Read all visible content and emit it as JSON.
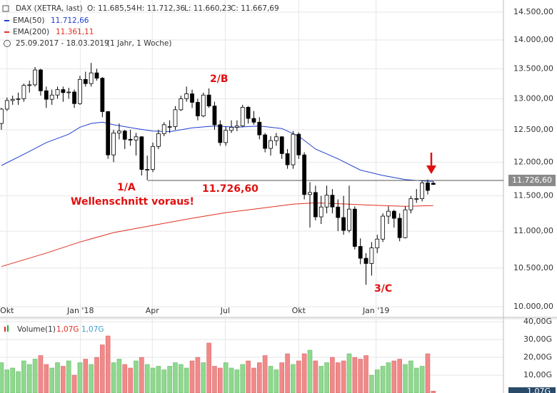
{
  "chart_data": {
    "type": "candlestick",
    "title": "DAX (XETRA, last)",
    "last_labels": [
      "O: 11.685,54",
      "H: 11.712,36",
      "L: 11.660,23",
      "C: 11.667,69"
    ],
    "period": "25.09.2017 - 18.03.2019",
    "period_note": "(1 Jahr, 1 Woche)",
    "ylog": true,
    "ylim": [
      9875,
      14723
    ],
    "yticks": [
      {
        "value": 10000,
        "label": "10.000,00"
      },
      {
        "value": 10500,
        "label": "10.500,00"
      },
      {
        "value": 11000,
        "label": "11.000,00"
      },
      {
        "value": 11500,
        "label": "11.500,00"
      },
      {
        "value": 12000,
        "label": "12.000,00"
      },
      {
        "value": 12500,
        "label": "12.500,00"
      },
      {
        "value": 13000,
        "label": "13.000,00"
      },
      {
        "value": 13500,
        "label": "13.500,00"
      },
      {
        "value": 14000,
        "label": "14.000,00"
      },
      {
        "value": 14500,
        "label": "14.500,00"
      }
    ],
    "xlim": [
      -0.25,
      89.5
    ],
    "xticks": [
      {
        "value": 1,
        "label": "Okt"
      },
      {
        "value": 14.1,
        "label": "Jan '18"
      },
      {
        "value": 26.9,
        "label": "Apr"
      },
      {
        "value": 39.9,
        "label": "Jul"
      },
      {
        "value": 53,
        "label": "Okt"
      },
      {
        "value": 66.8,
        "label": "Jan '19"
      }
    ],
    "grid": true,
    "up_color": "#ffffff",
    "down_color": "#000000",
    "ohlc": [
      [
        12600,
        12850,
        12500,
        12830
      ],
      [
        12830,
        13020,
        12800,
        12970
      ],
      [
        12970,
        13050,
        12900,
        12990
      ],
      [
        12990,
        13100,
        12900,
        13000
      ],
      [
        13000,
        13250,
        12950,
        13220
      ],
      [
        13220,
        13300,
        13100,
        13230
      ],
      [
        13230,
        13530,
        13200,
        13480
      ],
      [
        13480,
        13500,
        13050,
        13130
      ],
      [
        13130,
        13200,
        12850,
        12990
      ],
      [
        12990,
        13150,
        12900,
        13060
      ],
      [
        13060,
        13200,
        13000,
        13150
      ],
      [
        13150,
        13200,
        12950,
        13100
      ],
      [
        13100,
        13180,
        13000,
        13110
      ],
      [
        13110,
        13150,
        12850,
        12920
      ],
      [
        12920,
        13380,
        12900,
        13320
      ],
      [
        13320,
        13450,
        13200,
        13250
      ],
      [
        13250,
        13600,
        13200,
        13430
      ],
      [
        13430,
        13500,
        13300,
        13340
      ],
      [
        13340,
        13360,
        12700,
        12790
      ],
      [
        12790,
        12800,
        12050,
        12110
      ],
      [
        12110,
        12500,
        12000,
        12450
      ],
      [
        12450,
        12600,
        12350,
        12480
      ],
      [
        12480,
        12500,
        12200,
        12350
      ],
      [
        12350,
        12500,
        12250,
        12340
      ],
      [
        12340,
        12450,
        12100,
        12390
      ],
      [
        12390,
        12400,
        11800,
        11890
      ],
      [
        11890,
        12100,
        11730,
        11890
      ],
      [
        11890,
        12300,
        11850,
        12240
      ],
      [
        12240,
        12500,
        12200,
        12440
      ],
      [
        12440,
        12620,
        12400,
        12580
      ],
      [
        12550,
        12650,
        12450,
        12550
      ],
      [
        12550,
        12880,
        12500,
        12820
      ],
      [
        12820,
        13050,
        12800,
        13000
      ],
      [
        13000,
        13200,
        12950,
        13080
      ],
      [
        13080,
        13150,
        12850,
        12940
      ],
      [
        12940,
        13000,
        12650,
        12720
      ],
      [
        12720,
        13100,
        12700,
        13060
      ],
      [
        13060,
        13170,
        12850,
        12880
      ],
      [
        12880,
        12950,
        12500,
        12580
      ],
      [
        12580,
        12650,
        12250,
        12300
      ],
      [
        12300,
        12550,
        12250,
        12490
      ],
      [
        12490,
        12650,
        12450,
        12540
      ],
      [
        12540,
        12650,
        12480,
        12560
      ],
      [
        12560,
        12900,
        12540,
        12860
      ],
      [
        12860,
        12880,
        12600,
        12680
      ],
      [
        12680,
        12800,
        12580,
        12620
      ],
      [
        12620,
        12700,
        12350,
        12420
      ],
      [
        12420,
        12450,
        12150,
        12210
      ],
      [
        12210,
        12400,
        12100,
        12330
      ],
      [
        12330,
        12450,
        12250,
        12390
      ],
      [
        12390,
        12400,
        12050,
        12130
      ],
      [
        12130,
        12200,
        11900,
        11960
      ],
      [
        11960,
        12480,
        11900,
        12430
      ],
      [
        12430,
        12460,
        12050,
        12110
      ],
      [
        12110,
        12150,
        11450,
        11520
      ],
      [
        11520,
        11700,
        11050,
        11550
      ],
      [
        11550,
        11650,
        11150,
        11200
      ],
      [
        11200,
        11500,
        11100,
        11340
      ],
      [
        11340,
        11650,
        11250,
        11510
      ],
      [
        11510,
        11600,
        11250,
        11340
      ],
      [
        11340,
        11450,
        11000,
        11190
      ],
      [
        11190,
        11500,
        10950,
        11010
      ],
      [
        11010,
        11650,
        10980,
        11310
      ],
      [
        11310,
        11350,
        10750,
        10790
      ],
      [
        10790,
        10900,
        10550,
        10630
      ],
      [
        10630,
        10700,
        10280,
        10560
      ],
      [
        10560,
        10850,
        10400,
        10770
      ],
      [
        10770,
        10950,
        10700,
        10890
      ],
      [
        10890,
        11250,
        10850,
        11210
      ],
      [
        11210,
        11350,
        11100,
        11280
      ],
      [
        11280,
        11300,
        11050,
        11180
      ],
      [
        11180,
        11250,
        10860,
        10910
      ],
      [
        10910,
        11350,
        10900,
        11300
      ],
      [
        11300,
        11500,
        11250,
        11460
      ],
      [
        11460,
        11600,
        11400,
        11460
      ],
      [
        11460,
        11720,
        11420,
        11690
      ],
      [
        11690,
        11740,
        11520,
        11580
      ],
      [
        11685.54,
        11712.36,
        11660.23,
        11667.69
      ]
    ],
    "series": [
      {
        "name": "EMA(50)",
        "color": "#2040d0",
        "value_label": "11.712,66",
        "x": [
          0,
          4,
          8,
          12,
          14,
          16,
          18,
          20,
          24,
          27,
          30,
          34,
          38,
          42,
          46,
          50,
          53,
          56,
          60,
          64,
          68,
          72,
          76,
          77
        ],
        "values": [
          11950,
          12120,
          12300,
          12430,
          12540,
          12600,
          12620,
          12580,
          12520,
          12480,
          12470,
          12530,
          12560,
          12540,
          12560,
          12520,
          12400,
          12200,
          12050,
          11880,
          11800,
          11740,
          11715,
          11712.66
        ]
      },
      {
        "name": "EMA(200)",
        "color": "#e03020",
        "value_label": "11.361,11",
        "x": [
          0,
          8,
          14,
          20,
          27,
          34,
          40,
          46,
          52,
          56,
          62,
          68,
          72,
          77
        ],
        "values": [
          10520,
          10700,
          10850,
          10980,
          11080,
          11180,
          11260,
          11320,
          11380,
          11400,
          11380,
          11360,
          11350,
          11361.11
        ]
      }
    ],
    "hline": {
      "value": 11726.6,
      "label": "11.726,60"
    },
    "annotations": [
      "2/B",
      "1/A",
      "Wellenschnitt voraus!",
      "11.726,60",
      "3/C"
    ],
    "volume": {
      "name": "Volume(1)",
      "value_label": "1,07G",
      "up_color": "#90d890",
      "down_color": "#f08a8a",
      "ylim": [
        0,
        41.6
      ],
      "yticks": [
        {
          "value": 10,
          "label": "10,00G"
        },
        {
          "value": 20,
          "label": "20,00G"
        },
        {
          "value": 30,
          "label": "30,00G"
        },
        {
          "value": 40,
          "label": "40,00G"
        }
      ],
      "values": [
        17,
        13,
        14,
        12,
        18,
        16,
        19,
        21,
        16,
        14,
        17,
        15,
        18,
        10,
        17,
        19,
        16,
        20,
        27,
        32,
        17,
        19,
        16,
        14,
        18,
        20,
        16,
        14,
        15,
        13,
        15,
        17,
        16,
        14,
        18,
        20,
        17,
        28,
        15,
        14,
        17,
        14,
        13,
        16,
        18,
        14,
        17,
        21,
        15,
        13,
        17,
        22,
        16,
        18,
        22,
        24,
        18,
        15,
        17,
        20,
        17,
        18,
        22,
        20,
        19,
        21,
        10,
        13,
        15,
        17,
        18,
        19,
        16,
        18,
        14,
        15,
        22,
        1.07
      ]
    }
  }
}
